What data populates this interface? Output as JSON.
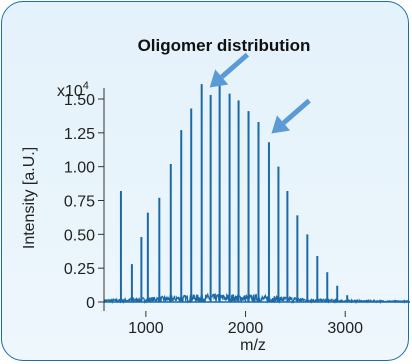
{
  "chart_data": {
    "type": "bar",
    "title": "Oligomer distribution",
    "xlabel": "m/z",
    "ylabel": "Intensity [a.U.]",
    "y_multiplier": "x10",
    "y_multiplier_exp": "4",
    "xlim": [
      580,
      3650
    ],
    "ylim": [
      0,
      1.75
    ],
    "x_ticks": [
      1000,
      2000,
      3000
    ],
    "x_tick_labels": [
      "1000",
      "2000",
      "3000"
    ],
    "y_ticks": [
      0,
      0.25,
      0.5,
      0.75,
      1.0,
      1.25,
      1.5
    ],
    "y_tick_labels": [
      "0",
      "0.25",
      "0.50",
      "0.75",
      "1.00",
      "1.25",
      "1.50"
    ],
    "grid": false,
    "peaks": {
      "x": [
        750,
        860,
        955,
        1020,
        1135,
        1250,
        1355,
        1455,
        1560,
        1650,
        1740,
        1840,
        1930,
        2030,
        2130,
        2235,
        2330,
        2420,
        2520,
        2620,
        2720,
        2820,
        2920,
        3020
      ],
      "y": [
        0.82,
        0.28,
        0.48,
        0.66,
        0.77,
        1.02,
        1.27,
        1.43,
        1.61,
        1.53,
        1.62,
        1.54,
        1.49,
        1.41,
        1.33,
        1.18,
        1.0,
        0.82,
        0.64,
        0.5,
        0.34,
        0.22,
        0.12,
        0.05
      ]
    },
    "baseline_noise_level": 0.06,
    "annotations": [
      {
        "type": "arrow",
        "x": 1620,
        "y": 1.6
      },
      {
        "type": "arrow",
        "x": 2240,
        "y": 1.26
      }
    ],
    "colors": {
      "series": "#1b6aa6",
      "arrow": "#5b9bd5",
      "border": "#1a6fa8"
    }
  }
}
